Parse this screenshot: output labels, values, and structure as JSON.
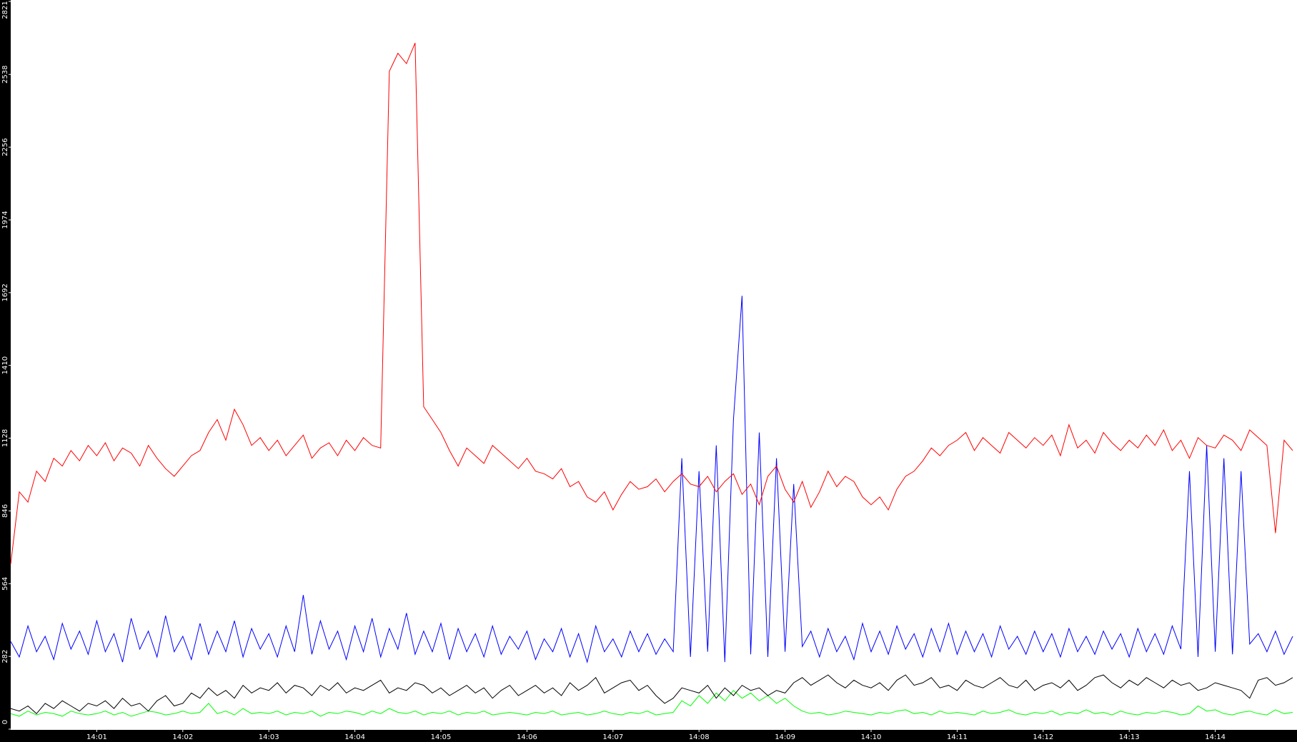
{
  "chart_data": {
    "type": "line",
    "x": [
      0,
      0.1,
      0.2,
      0.3,
      0.4,
      0.5,
      0.6,
      0.7,
      0.8,
      0.9,
      1,
      1.1,
      1.2,
      1.3,
      1.4,
      1.5,
      1.6,
      1.7,
      1.8,
      1.9,
      2,
      2.1,
      2.2,
      2.3,
      2.4,
      2.5,
      2.6,
      2.7,
      2.8,
      2.9,
      3,
      3.1,
      3.2,
      3.3,
      3.4,
      3.5,
      3.6,
      3.7,
      3.8,
      3.9,
      4,
      4.1,
      4.2,
      4.3,
      4.4,
      4.5,
      4.6,
      4.7,
      4.8,
      4.9,
      5,
      5.1,
      5.2,
      5.3,
      5.4,
      5.5,
      5.6,
      5.7,
      5.8,
      5.9,
      6,
      6.1,
      6.2,
      6.3,
      6.4,
      6.5,
      6.6,
      6.7,
      6.8,
      6.9,
      7,
      7.1,
      7.2,
      7.3,
      7.4,
      7.5,
      7.6,
      7.7,
      7.8,
      7.9,
      8,
      8.1,
      8.2,
      8.3,
      8.4,
      8.5,
      8.6,
      8.7,
      8.8,
      8.9,
      9,
      9.1,
      9.2,
      9.3,
      9.4,
      9.5,
      9.6,
      9.7,
      9.8,
      9.9,
      10,
      10.1,
      10.2,
      10.3,
      10.4,
      10.5,
      10.6,
      10.7,
      10.8,
      10.9,
      11,
      11.1,
      11.2,
      11.3,
      11.4,
      11.5,
      11.6,
      11.7,
      11.8,
      11.9,
      12,
      12.1,
      12.2,
      12.3,
      12.4,
      12.5,
      12.6,
      12.7,
      12.8,
      12.9,
      13,
      13.1,
      13.2,
      13.3,
      13.4,
      13.5,
      13.6,
      13.7,
      13.8,
      13.9,
      14,
      14.1,
      14.2,
      14.3,
      14.4,
      14.5,
      14.6,
      14.7,
      14.8,
      14.9
    ],
    "series": [
      {
        "color": "#ff0000",
        "values": [
          640,
          920,
          880,
          1000,
          960,
          1050,
          1020,
          1080,
          1040,
          1100,
          1060,
          1110,
          1040,
          1090,
          1070,
          1020,
          1100,
          1050,
          1010,
          980,
          1020,
          1060,
          1080,
          1150,
          1200,
          1120,
          1240,
          1180,
          1100,
          1130,
          1080,
          1120,
          1060,
          1100,
          1140,
          1050,
          1090,
          1110,
          1060,
          1120,
          1080,
          1130,
          1100,
          1090,
          2550,
          2620,
          2580,
          2660,
          1250,
          1200,
          1150,
          1080,
          1020,
          1090,
          1060,
          1030,
          1100,
          1070,
          1040,
          1010,
          1050,
          1000,
          990,
          970,
          1010,
          940,
          960,
          900,
          880,
          920,
          850,
          910,
          960,
          930,
          940,
          970,
          920,
          960,
          990,
          950,
          940,
          980,
          920,
          960,
          990,
          910,
          950,
          870,
          980,
          1020,
          930,
          880,
          960,
          860,
          920,
          1000,
          940,
          980,
          960,
          900,
          870,
          900,
          850,
          930,
          980,
          1000,
          1040,
          1090,
          1060,
          1100,
          1120,
          1150,
          1080,
          1130,
          1100,
          1070,
          1150,
          1120,
          1090,
          1130,
          1100,
          1140,
          1060,
          1180,
          1090,
          1120,
          1070,
          1150,
          1110,
          1080,
          1120,
          1090,
          1140,
          1100,
          1160,
          1080,
          1120,
          1050,
          1130,
          1100,
          1090,
          1140,
          1120,
          1080,
          1160,
          1130,
          1100,
          760,
          1120,
          1080
        ]
      },
      {
        "color": "#0000ff",
        "values": [
          340,
          280,
          400,
          300,
          360,
          270,
          410,
          310,
          380,
          290,
          420,
          300,
          370,
          260,
          430,
          310,
          380,
          280,
          440,
          300,
          360,
          270,
          410,
          290,
          380,
          300,
          420,
          280,
          390,
          310,
          370,
          280,
          400,
          300,
          520,
          290,
          420,
          310,
          380,
          270,
          400,
          300,
          430,
          280,
          390,
          310,
          450,
          290,
          380,
          300,
          410,
          270,
          390,
          300,
          370,
          280,
          400,
          290,
          360,
          310,
          380,
          270,
          350,
          300,
          390,
          280,
          370,
          260,
          400,
          300,
          350,
          280,
          380,
          300,
          370,
          290,
          350,
          300,
          1050,
          280,
          1000,
          300,
          1100,
          260,
          1200,
          1680,
          290,
          1150,
          280,
          1050,
          300,
          950,
          320,
          380,
          280,
          390,
          300,
          360,
          270,
          410,
          300,
          380,
          290,
          400,
          310,
          370,
          280,
          390,
          300,
          410,
          290,
          380,
          300,
          370,
          280,
          400,
          310,
          360,
          290,
          380,
          300,
          370,
          280,
          390,
          300,
          360,
          290,
          380,
          310,
          370,
          280,
          390,
          300,
          370,
          290,
          400,
          310,
          1000,
          280,
          1100,
          300,
          1050,
          290,
          1000,
          330,
          370,
          300,
          380,
          290,
          360
        ]
      },
      {
        "color": "#000000",
        "values": [
          80,
          70,
          90,
          60,
          100,
          80,
          110,
          90,
          70,
          100,
          90,
          110,
          80,
          120,
          90,
          100,
          70,
          110,
          130,
          90,
          100,
          140,
          120,
          160,
          130,
          150,
          120,
          170,
          140,
          160,
          150,
          180,
          140,
          170,
          160,
          130,
          170,
          150,
          180,
          140,
          160,
          150,
          170,
          190,
          140,
          160,
          150,
          180,
          170,
          140,
          160,
          130,
          150,
          170,
          140,
          160,
          120,
          150,
          170,
          130,
          150,
          170,
          140,
          160,
          130,
          180,
          150,
          170,
          200,
          140,
          160,
          180,
          190,
          150,
          170,
          130,
          100,
          120,
          160,
          150,
          140,
          170,
          120,
          160,
          130,
          170,
          150,
          160,
          130,
          150,
          140,
          180,
          200,
          170,
          190,
          210,
          180,
          160,
          190,
          170,
          160,
          180,
          150,
          190,
          210,
          170,
          180,
          200,
          160,
          170,
          150,
          190,
          170,
          160,
          180,
          200,
          170,
          160,
          190,
          150,
          170,
          180,
          160,
          190,
          150,
          170,
          200,
          210,
          180,
          160,
          190,
          170,
          200,
          180,
          160,
          190,
          170,
          180,
          150,
          160,
          180,
          170,
          160,
          150,
          120,
          190,
          200,
          170,
          180,
          200
        ]
      },
      {
        "color": "#00ff00",
        "values": [
          60,
          50,
          70,
          55,
          65,
          60,
          50,
          70,
          60,
          55,
          60,
          70,
          55,
          65,
          50,
          60,
          70,
          65,
          55,
          60,
          70,
          60,
          65,
          100,
          60,
          70,
          55,
          80,
          60,
          65,
          60,
          70,
          55,
          65,
          60,
          70,
          50,
          65,
          60,
          70,
          65,
          55,
          70,
          60,
          80,
          65,
          60,
          70,
          55,
          65,
          60,
          70,
          55,
          65,
          60,
          70,
          55,
          60,
          65,
          60,
          55,
          65,
          60,
          70,
          55,
          60,
          65,
          55,
          60,
          70,
          60,
          55,
          65,
          60,
          70,
          55,
          60,
          65,
          110,
          90,
          130,
          100,
          140,
          110,
          150,
          120,
          140,
          110,
          130,
          100,
          120,
          90,
          70,
          60,
          65,
          55,
          60,
          70,
          65,
          60,
          55,
          65,
          60,
          70,
          75,
          60,
          65,
          55,
          70,
          60,
          65,
          60,
          55,
          70,
          60,
          65,
          75,
          60,
          55,
          65,
          60,
          70,
          55,
          65,
          60,
          75,
          60,
          65,
          55,
          70,
          60,
          55,
          65,
          60,
          70,
          65,
          55,
          60,
          90,
          70,
          75,
          60,
          55,
          65,
          70,
          60,
          55,
          75,
          60,
          65
        ]
      }
    ],
    "xlim": [
      0,
      14.95
    ],
    "xticks": [
      {
        "value": 1,
        "label": "14:01"
      },
      {
        "value": 2,
        "label": "14:02"
      },
      {
        "value": 3,
        "label": "14:03"
      },
      {
        "value": 4,
        "label": "14:04"
      },
      {
        "value": 5,
        "label": "14:05"
      },
      {
        "value": 6,
        "label": "14:06"
      },
      {
        "value": 7,
        "label": "14:07"
      },
      {
        "value": 8,
        "label": "14:08"
      },
      {
        "value": 9,
        "label": "14:09"
      },
      {
        "value": 10,
        "label": "14:10"
      },
      {
        "value": 11,
        "label": "14:11"
      },
      {
        "value": 12,
        "label": "14:12"
      },
      {
        "value": 13,
        "label": "14:13"
      },
      {
        "value": 14,
        "label": "14:14"
      }
    ],
    "ylim": [
      0,
      2821
    ],
    "yticks": [
      0,
      282,
      564,
      846,
      1128,
      1410,
      1692,
      1974,
      2256,
      2538,
      2821
    ]
  }
}
